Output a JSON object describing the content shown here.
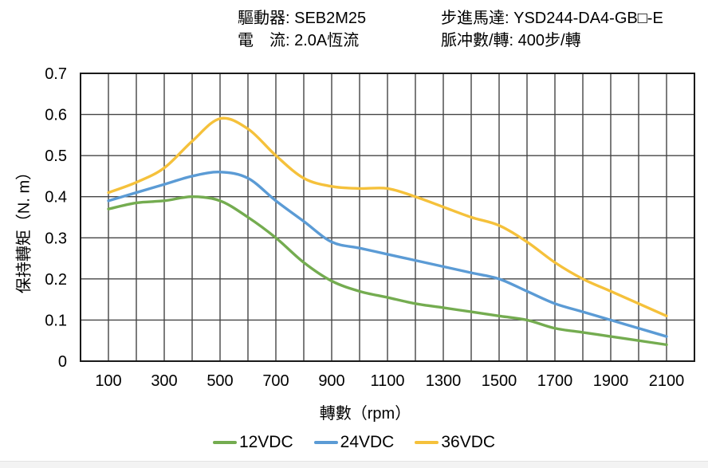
{
  "header": {
    "driver_line": "驅動器: SEB2M25",
    "current_line": "電　流: 2.0A恆流",
    "motor_line": "步進馬達: YSD244-DA4-GB□-E",
    "pulse_line": "脈冲數/轉: 400步/轉"
  },
  "chart_data": {
    "type": "line",
    "title": "",
    "xlabel": "轉數（rpm）",
    "ylabel": "保持轉矩（N. m）",
    "xlim": [
      0,
      2200
    ],
    "ylim": [
      0,
      0.7
    ],
    "grid": true,
    "grid_step_x": 100,
    "grid_step_y": 0.1,
    "grid_color": "#454545",
    "border_color": "#1a1a1a",
    "legend_position": "bottom",
    "x_ticks": [
      "100",
      "300",
      "500",
      "700",
      "900",
      "1100",
      "1300",
      "1500",
      "1700",
      "1900",
      "2100"
    ],
    "x_tick_values": [
      100,
      300,
      500,
      700,
      900,
      1100,
      1300,
      1500,
      1700,
      1900,
      2100
    ],
    "y_ticks": [
      "0",
      "0.1",
      "0.2",
      "0.3",
      "0.4",
      "0.5",
      "0.6",
      "0.7"
    ],
    "x": [
      100,
      200,
      300,
      400,
      500,
      600,
      700,
      800,
      900,
      1000,
      1100,
      1200,
      1300,
      1400,
      1500,
      1600,
      1700,
      1800,
      1900,
      2000,
      2100
    ],
    "series": [
      {
        "name": "12VDC",
        "color": "#74AC50",
        "values": [
          0.37,
          0.385,
          0.39,
          0.4,
          0.39,
          0.35,
          0.3,
          0.24,
          0.195,
          0.17,
          0.155,
          0.14,
          0.13,
          0.12,
          0.11,
          0.1,
          0.08,
          0.07,
          0.06,
          0.05,
          0.04
        ]
      },
      {
        "name": "24VDC",
        "color": "#5B9BD5",
        "values": [
          0.39,
          0.41,
          0.43,
          0.45,
          0.46,
          0.445,
          0.39,
          0.34,
          0.29,
          0.275,
          0.26,
          0.245,
          0.23,
          0.215,
          0.2,
          0.17,
          0.14,
          0.12,
          0.1,
          0.08,
          0.06
        ]
      },
      {
        "name": "36VDC",
        "color": "#F5C13B",
        "values": [
          0.41,
          0.435,
          0.47,
          0.535,
          0.59,
          0.565,
          0.5,
          0.445,
          0.425,
          0.42,
          0.42,
          0.4,
          0.375,
          0.35,
          0.33,
          0.29,
          0.24,
          0.2,
          0.17,
          0.14,
          0.11
        ]
      }
    ]
  }
}
